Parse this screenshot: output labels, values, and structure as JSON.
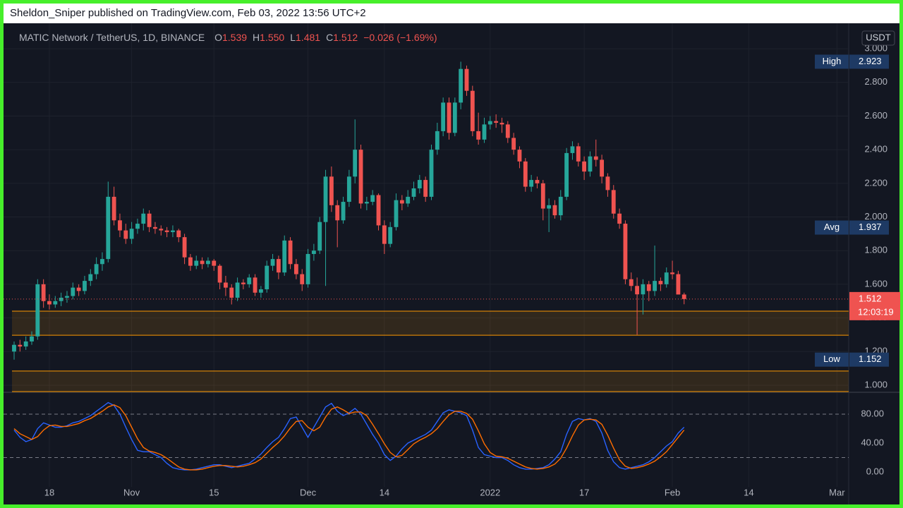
{
  "header": {
    "text": "Sheldon_Sniper published on TradingView.com, Feb 03, 2022 13:56 UTC+2"
  },
  "chart_data": [
    {
      "type": "candlestick",
      "title": "MATIC Network / TetherUS, 1D, BINANCE",
      "legend": {
        "keys": [
          "O",
          "H",
          "L",
          "C"
        ],
        "values": [
          1.539,
          {
            "value": 1.55,
            "label": "1.550"
          },
          1.481,
          1.512
        ],
        "change": "−0.026 (−1.69%)"
      },
      "currency": "USDT",
      "up_color": "#26a69a",
      "down_color": "#ef5350",
      "x": [
        "Oct 12",
        "Oct 13",
        "Oct 14",
        "Oct 15",
        "Oct 16",
        "Oct 17",
        "Oct 18",
        "Oct 19",
        "Oct 20",
        "Oct 21",
        "Oct 22",
        "Oct 23",
        "Oct 24",
        "Oct 25",
        "Oct 26",
        "Oct 27",
        "Oct 28",
        "Oct 29",
        "Oct 30",
        "Oct 31",
        "Nov 1",
        "Nov 2",
        "Nov 3",
        "Nov 4",
        "Nov 5",
        "Nov 6",
        "Nov 7",
        "Nov 8",
        "Nov 9",
        "Nov 10",
        "Nov 11",
        "Nov 12",
        "Nov 13",
        "Nov 14",
        "Nov 15",
        "Nov 16",
        "Nov 17",
        "Nov 18",
        "Nov 19",
        "Nov 20",
        "Nov 21",
        "Nov 22",
        "Nov 23",
        "Nov 24",
        "Nov 25",
        "Nov 26",
        "Nov 27",
        "Nov 28",
        "Nov 29",
        "Nov 30",
        "Dec 1",
        "Dec 2",
        "Dec 3",
        "Dec 4",
        "Dec 5",
        "Dec 6",
        "Dec 7",
        "Dec 8",
        "Dec 9",
        "Dec 10",
        "Dec 11",
        "Dec 12",
        "Dec 13",
        "Dec 14",
        "Dec 15",
        "Dec 16",
        "Dec 17",
        "Dec 18",
        "Dec 19",
        "Dec 20",
        "Dec 21",
        "Dec 22",
        "Dec 23",
        "Dec 24",
        "Dec 25",
        "Dec 26",
        "Dec 27",
        "Dec 28",
        "Dec 29",
        "Dec 30",
        "Dec 31",
        "Jan 1",
        "Jan 2",
        "Jan 3",
        "Jan 4",
        "Jan 5",
        "Jan 6",
        "Jan 7",
        "Jan 8",
        "Jan 9",
        "Jan 10",
        "Jan 11",
        "Jan 12",
        "Jan 13",
        "Jan 14",
        "Jan 15",
        "Jan 16",
        "Jan 17",
        "Jan 18",
        "Jan 19",
        "Jan 20",
        "Jan 21",
        "Jan 22",
        "Jan 23",
        "Jan 24",
        "Jan 25",
        "Jan 26",
        "Jan 27",
        "Jan 28",
        "Jan 29",
        "Jan 30",
        "Jan 31",
        "Feb 1",
        "Feb 2",
        "Feb 3"
      ],
      "open": [
        1.2,
        1.24,
        1.23,
        1.26,
        1.29,
        1.6,
        1.5,
        1.48,
        1.5,
        1.52,
        1.53,
        1.58,
        1.56,
        1.62,
        1.66,
        1.72,
        1.75,
        2.12,
        1.98,
        1.92,
        1.87,
        1.93,
        1.96,
        2.02,
        1.94,
        1.93,
        1.92,
        1.91,
        1.92,
        1.88,
        1.76,
        1.71,
        1.74,
        1.72,
        1.74,
        1.71,
        1.61,
        1.58,
        1.52,
        1.61,
        1.6,
        1.64,
        1.55,
        1.57,
        1.71,
        1.75,
        1.67,
        1.86,
        1.72,
        1.66,
        1.6,
        1.78,
        1.8,
        1.97,
        2.24,
        2.07,
        1.98,
        2.09,
        2.24,
        2.4,
        2.08,
        2.09,
        2.13,
        1.95,
        1.84,
        1.94,
        2.1,
        2.08,
        2.12,
        2.17,
        2.22,
        2.12,
        2.4,
        2.51,
        2.68,
        2.5,
        2.68,
        2.88,
        2.75,
        2.51,
        2.46,
        2.55,
        2.57,
        2.56,
        2.55,
        2.47,
        2.4,
        2.33,
        2.18,
        2.22,
        2.2,
        2.05,
        2.07,
        2.01,
        2.12,
        2.38,
        2.42,
        2.33,
        2.27,
        2.36,
        2.34,
        2.24,
        2.16,
        2.02,
        1.96,
        1.63,
        1.59,
        1.54,
        1.6,
        1.56,
        1.62,
        1.6,
        1.67,
        1.66,
        1.539
      ],
      "high": [
        1.26,
        1.27,
        1.29,
        1.32,
        1.63,
        1.63,
        1.54,
        1.53,
        1.55,
        1.56,
        1.61,
        1.6,
        1.65,
        1.69,
        1.76,
        1.79,
        2.21,
        2.18,
        2.02,
        1.96,
        1.97,
        1.99,
        2.05,
        2.04,
        1.97,
        1.95,
        1.94,
        1.95,
        1.93,
        1.9,
        1.78,
        1.77,
        1.76,
        1.76,
        1.75,
        1.72,
        1.65,
        1.6,
        1.64,
        1.63,
        1.66,
        1.66,
        1.59,
        1.74,
        1.78,
        1.77,
        1.89,
        1.88,
        1.75,
        1.69,
        1.81,
        1.84,
        2.0,
        2.28,
        2.3,
        2.1,
        2.12,
        2.28,
        2.58,
        2.43,
        2.12,
        2.16,
        2.14,
        1.98,
        1.97,
        2.14,
        2.13,
        2.16,
        2.21,
        2.25,
        2.24,
        2.43,
        2.56,
        2.71,
        2.71,
        2.71,
        2.923,
        2.9,
        2.78,
        2.62,
        2.59,
        2.6,
        2.61,
        2.59,
        2.57,
        2.5,
        2.42,
        2.35,
        2.25,
        2.24,
        2.22,
        2.11,
        2.1,
        2.16,
        2.41,
        2.45,
        2.44,
        2.36,
        2.39,
        2.46,
        2.37,
        2.26,
        2.19,
        2.05,
        1.98,
        1.67,
        1.64,
        1.63,
        1.62,
        1.83,
        1.64,
        1.7,
        1.74,
        1.68,
        1.55
      ],
      "low": [
        1.152,
        1.2,
        1.21,
        1.24,
        1.27,
        1.46,
        1.45,
        1.46,
        1.47,
        1.49,
        1.51,
        1.53,
        1.54,
        1.59,
        1.63,
        1.68,
        1.73,
        1.95,
        1.88,
        1.84,
        1.84,
        1.9,
        1.92,
        1.91,
        1.9,
        1.89,
        1.88,
        1.88,
        1.85,
        1.72,
        1.68,
        1.69,
        1.69,
        1.7,
        1.68,
        1.57,
        1.53,
        1.48,
        1.5,
        1.57,
        1.58,
        1.53,
        1.52,
        1.55,
        1.68,
        1.63,
        1.65,
        1.69,
        1.63,
        1.56,
        1.58,
        1.74,
        1.78,
        1.59,
        2.03,
        1.82,
        1.96,
        2.06,
        2.2,
        2.05,
        2.04,
        2.07,
        1.92,
        1.78,
        1.82,
        1.92,
        2.04,
        2.06,
        2.1,
        2.14,
        2.09,
        2.1,
        2.37,
        2.48,
        2.46,
        2.48,
        2.64,
        2.72,
        2.48,
        2.43,
        2.44,
        2.52,
        2.53,
        2.5,
        2.44,
        2.37,
        2.29,
        2.15,
        2.15,
        2.17,
        1.98,
        1.91,
        1.99,
        1.98,
        2.1,
        2.34,
        2.3,
        2.22,
        2.24,
        2.3,
        2.2,
        2.12,
        1.99,
        1.93,
        1.6,
        1.56,
        1.3,
        1.42,
        1.5,
        1.53,
        1.56,
        1.58,
        1.63,
        1.55,
        1.481
      ],
      "close": [
        1.24,
        1.23,
        1.26,
        1.29,
        1.6,
        1.5,
        1.48,
        1.5,
        1.52,
        1.53,
        1.58,
        1.56,
        1.62,
        1.66,
        1.72,
        1.75,
        2.12,
        1.98,
        1.92,
        1.87,
        1.93,
        1.96,
        2.02,
        1.94,
        1.93,
        1.92,
        1.91,
        1.92,
        1.88,
        1.76,
        1.71,
        1.74,
        1.72,
        1.74,
        1.71,
        1.61,
        1.58,
        1.52,
        1.61,
        1.6,
        1.64,
        1.55,
        1.57,
        1.71,
        1.75,
        1.67,
        1.86,
        1.72,
        1.66,
        1.6,
        1.78,
        1.8,
        1.97,
        2.24,
        2.07,
        1.98,
        2.09,
        2.24,
        2.4,
        2.08,
        2.09,
        2.13,
        1.95,
        1.84,
        1.94,
        2.1,
        2.08,
        2.12,
        2.17,
        2.22,
        2.12,
        2.4,
        2.51,
        2.68,
        2.5,
        2.68,
        2.88,
        2.75,
        2.51,
        2.46,
        2.55,
        2.57,
        2.56,
        2.55,
        2.47,
        2.4,
        2.33,
        2.18,
        2.22,
        2.2,
        2.05,
        2.07,
        2.01,
        2.12,
        2.38,
        2.42,
        2.33,
        2.27,
        2.36,
        2.34,
        2.24,
        2.16,
        2.02,
        1.96,
        1.63,
        1.59,
        1.54,
        1.6,
        1.56,
        1.62,
        1.6,
        1.67,
        1.66,
        1.539,
        1.512
      ],
      "xlim": [
        "Oct 12",
        "Mar 3"
      ],
      "xticks": [
        {
          "value": "Oct 18",
          "label": "18"
        },
        {
          "value": "Nov 1",
          "label": "Nov"
        },
        {
          "value": "Nov 15",
          "label": "15"
        },
        {
          "value": "Dec 1",
          "label": "Dec"
        },
        {
          "value": "Dec 14",
          "label": "14"
        },
        {
          "value": "Jan 1",
          "label": "2022"
        },
        {
          "value": "Jan 17",
          "label": "17"
        },
        {
          "value": "Feb 1",
          "label": "Feb"
        },
        {
          "value": "Feb 14",
          "label": "14"
        },
        {
          "value": "Mar 1",
          "label": "Mar"
        }
      ],
      "ylim": [
        0.962,
        3.122
      ],
      "yticks": [
        {
          "value": 1,
          "label": "1.000"
        },
        {
          "value": 1.2,
          "label": "1.200"
        },
        {
          "value": 1.4,
          "label": "1.400"
        },
        {
          "value": 1.6,
          "label": "1.600"
        },
        {
          "value": 1.8,
          "label": "1.800"
        },
        {
          "value": 2,
          "label": "2.000"
        },
        {
          "value": 2.2,
          "label": "2.200"
        },
        {
          "value": 2.4,
          "label": "2.400"
        },
        {
          "value": 2.6,
          "label": "2.600"
        },
        {
          "value": 2.8,
          "label": "2.800"
        },
        {
          "value": 3,
          "label": "3.000"
        }
      ],
      "grid": true,
      "high_label": "High",
      "avg_label": "Avg",
      "avg": 1.937,
      "low_label": "Low",
      "countdown": "12:03:19",
      "zone_color": "#ff9800",
      "zones": [
        {
          "from": 1.297,
          "to": 1.44
        },
        {
          "from": 0.962,
          "to": 1.084
        }
      ]
    },
    {
      "type": "line",
      "series": [
        {
          "color": "#2962ff",
          "values": [
            58,
            48,
            42,
            45,
            60,
            68,
            65,
            62,
            62,
            64,
            68,
            70,
            74,
            78,
            84,
            90,
            96,
            92,
            80,
            62,
            45,
            30,
            28,
            28,
            24,
            20,
            12,
            6,
            4,
            3,
            3,
            4,
            6,
            8,
            10,
            10,
            8,
            6,
            8,
            10,
            12,
            18,
            25,
            34,
            42,
            48,
            60,
            74,
            76,
            62,
            48,
            62,
            76,
            90,
            95,
            84,
            78,
            82,
            88,
            80,
            66,
            52,
            40,
            24,
            16,
            22,
            32,
            40,
            44,
            48,
            52,
            58,
            70,
            82,
            86,
            84,
            82,
            78,
            58,
            34,
            24,
            22,
            20,
            20,
            16,
            10,
            6,
            4,
            4,
            5,
            6,
            10,
            18,
            28,
            52,
            70,
            74,
            72,
            74,
            70,
            54,
            30,
            14,
            6,
            4,
            6,
            8,
            10,
            14,
            20,
            28,
            36,
            42,
            54,
            62
          ]
        },
        {
          "color": "#ff6d00",
          "values": [
            60,
            53,
            49,
            45,
            49,
            58,
            64,
            65,
            63,
            63,
            65,
            67,
            71,
            74,
            79,
            84,
            90,
            93,
            89,
            78,
            62,
            46,
            34,
            29,
            27,
            24,
            19,
            13,
            7,
            4,
            3,
            3,
            4,
            6,
            8,
            9,
            9,
            8,
            7,
            8,
            10,
            13,
            18,
            26,
            34,
            41,
            50,
            61,
            70,
            71,
            62,
            57,
            62,
            76,
            87,
            90,
            86,
            81,
            83,
            83,
            78,
            66,
            53,
            39,
            27,
            21,
            23,
            31,
            39,
            44,
            48,
            53,
            60,
            70,
            79,
            84,
            84,
            81,
            73,
            57,
            39,
            27,
            22,
            21,
            19,
            15,
            11,
            7,
            5,
            4,
            5,
            7,
            11,
            19,
            33,
            50,
            65,
            72,
            73,
            72,
            66,
            51,
            33,
            17,
            8,
            5,
            6,
            8,
            11,
            15,
            21,
            28,
            38,
            48,
            58
          ]
        }
      ],
      "ylim": [
        -20.5,
        109.3
      ],
      "yticks": [
        {
          "value": 0,
          "label": "0.00"
        },
        {
          "value": 40,
          "label": "40.00"
        },
        {
          "value": 80,
          "label": "80.00"
        }
      ],
      "levels": [
        20,
        80
      ]
    }
  ]
}
